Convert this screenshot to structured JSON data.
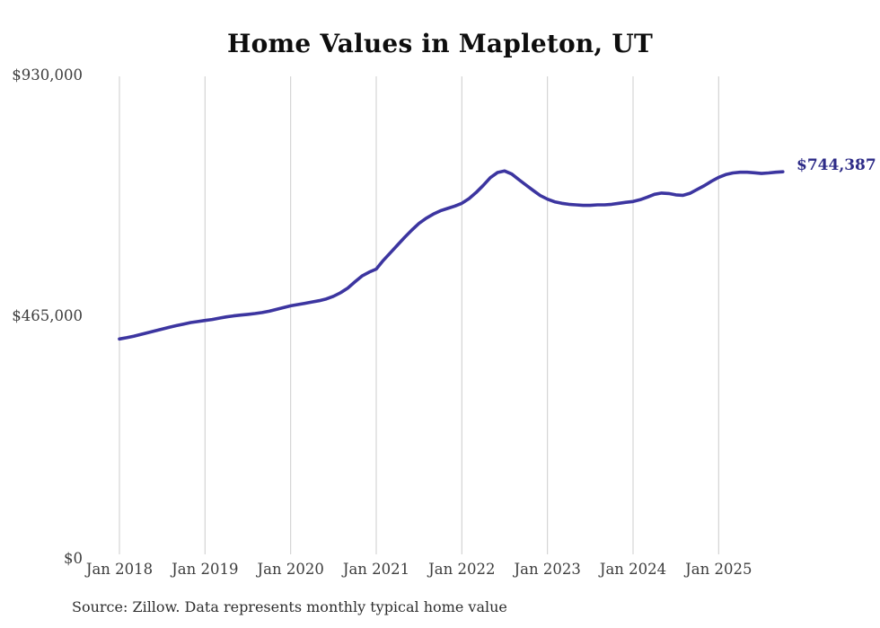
{
  "title": "Home Values in Mapleton, UT",
  "source_note": "Source: Zillow. Data represents monthly typical home value",
  "end_label": "$744,387",
  "colors": {
    "line": "#3c35a0",
    "end_label": "#2d2b87",
    "gridline": "#cccccc",
    "axis_text": "#3d3d3d",
    "title_text": "#0e0e0e"
  },
  "chart_data": {
    "type": "line",
    "title": "Home Values in Mapleton, UT",
    "xlabel": "",
    "ylabel": "",
    "ylim": [
      0,
      930000
    ],
    "y_tick_labels": [
      "$930,000",
      "$465,000",
      "$0"
    ],
    "y_tick_values": [
      930000,
      465000,
      0
    ],
    "x_tick_labels": [
      "Jan 2018",
      "Jan 2019",
      "Jan 2020",
      "Jan 2021",
      "Jan 2022",
      "Jan 2023",
      "Jan 2024",
      "Jan 2025"
    ],
    "x_start": "Jan 2018",
    "x_end": "Oct 2025",
    "frequency": "monthly",
    "grid": "vertical-only",
    "legend_position": "none",
    "end_value": 744387,
    "series": [
      {
        "name": "Typical home value",
        "values": [
          419000,
          421500,
          424500,
          428000,
          431500,
          435000,
          438500,
          442000,
          445000,
          448000,
          451000,
          453000,
          455000,
          457000,
          459500,
          462000,
          464000,
          465500,
          467000,
          468500,
          470500,
          473000,
          476500,
          480000,
          483500,
          486000,
          488500,
          491000,
          493500,
          497000,
          502000,
          509000,
          518000,
          530000,
          541500,
          549000,
          555000,
          572000,
          587000,
          602000,
          617000,
          631000,
          644000,
          654000,
          662000,
          668500,
          673000,
          677500,
          683000,
          692000,
          704000,
          718000,
          733000,
          743000,
          746000,
          740000,
          729000,
          718500,
          708000,
          698000,
          691000,
          686000,
          683000,
          681000,
          680000,
          679000,
          679000,
          680000,
          680000,
          681000,
          683000,
          685000,
          686500,
          690000,
          695000,
          700500,
          703000,
          702000,
          699500,
          698500,
          702500,
          710000,
          717500,
          726000,
          733500,
          739000,
          742000,
          743500,
          743500,
          742500,
          741000,
          742000,
          743500,
          744387
        ]
      }
    ]
  }
}
